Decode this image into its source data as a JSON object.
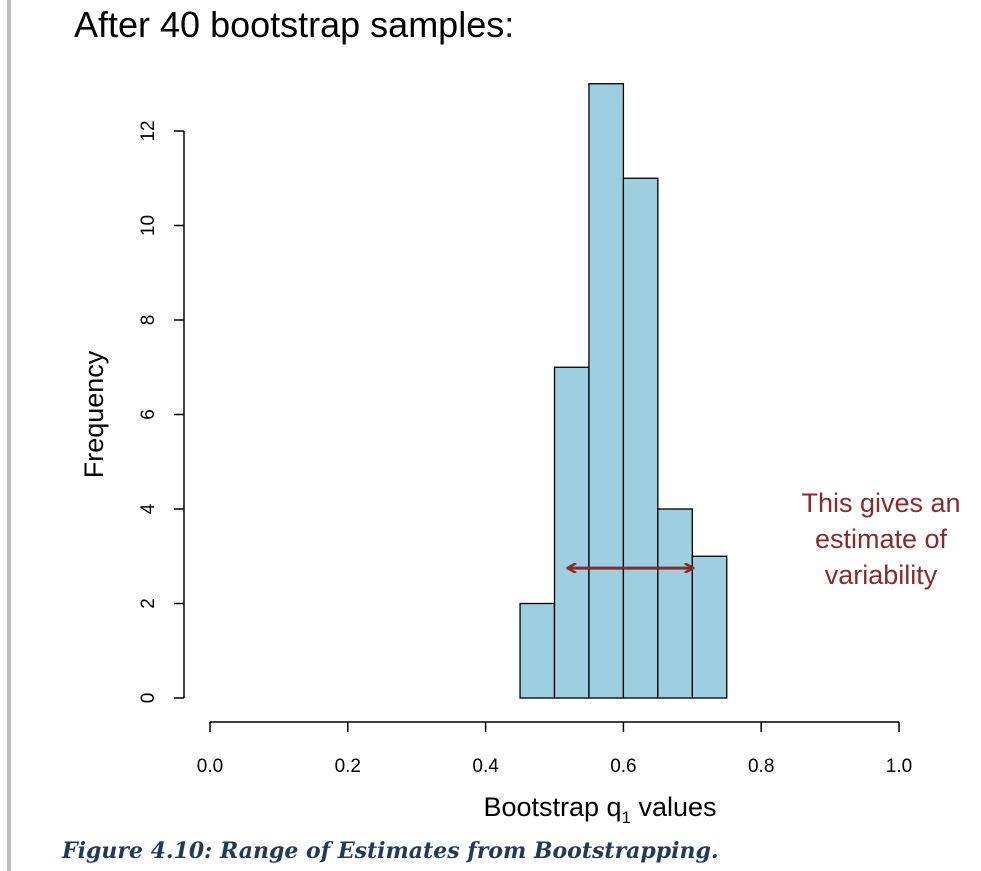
{
  "slide": {
    "title": "After 40 bootstrap samples:"
  },
  "caption": "Figure 4.10: Range of Estimates from Bootstrapping.",
  "colors": {
    "bar_fill": "#9ecfe0",
    "bar_stroke": "#000000",
    "annotation": "#8b2a2a"
  },
  "chart_data": {
    "type": "bar",
    "title": "",
    "xlabel": "Bootstrap q",
    "xlabel_subscript": "1",
    "xlabel_suffix": " values",
    "ylabel": "Frequency",
    "xlim": [
      0.0,
      1.0
    ],
    "ylim": [
      0,
      13
    ],
    "xticks": [
      "0.0",
      "0.2",
      "0.4",
      "0.6",
      "0.8",
      "1.0"
    ],
    "yticks": [
      "0",
      "2",
      "4",
      "6",
      "8",
      "10",
      "12"
    ],
    "bins": [
      {
        "x0": 0.45,
        "x1": 0.5,
        "count": 2
      },
      {
        "x0": 0.5,
        "x1": 0.55,
        "count": 7
      },
      {
        "x0": 0.55,
        "x1": 0.6,
        "count": 13
      },
      {
        "x0": 0.6,
        "x1": 0.65,
        "count": 11
      },
      {
        "x0": 0.65,
        "x1": 0.7,
        "count": 4
      },
      {
        "x0": 0.7,
        "x1": 0.75,
        "count": 3
      }
    ],
    "grid": false,
    "annotation": {
      "lines": [
        "This gives an",
        "estimate of",
        "variability"
      ],
      "arrow_from_x": 0.52,
      "arrow_to_x": 0.7,
      "arrow_y": 2.75
    }
  }
}
